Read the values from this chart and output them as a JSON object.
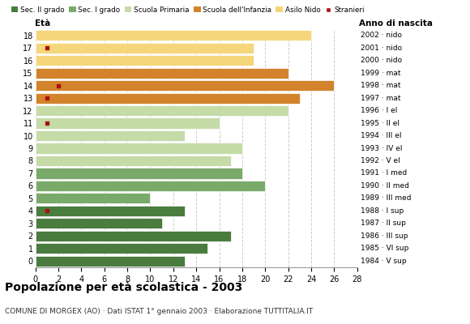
{
  "title": "Popolazione per età scolastica - 2003",
  "subtitle": "COMUNE DI MORGEX (AO) · Dati ISTAT 1° gennaio 2003 · Elaborazione TUTTITALIA.IT",
  "ages": [
    18,
    17,
    16,
    15,
    14,
    13,
    12,
    11,
    10,
    9,
    8,
    7,
    6,
    5,
    4,
    3,
    2,
    1,
    0
  ],
  "years": [
    "1984 · V sup",
    "1985 · VI sup",
    "1986 · III sup",
    "1987 · II sup",
    "1988 · I sup",
    "1989 · III med",
    "1990 · II med",
    "1991 · I med",
    "1992 · V el",
    "1993 · IV el",
    "1994 · III el",
    "1995 · II el",
    "1996 · I el",
    "1997 · mat",
    "1998 · mat",
    "1999 · mat",
    "2000 · nido",
    "2001 · nido",
    "2002 · nido"
  ],
  "values": [
    13,
    15,
    17,
    11,
    13,
    10,
    20,
    18,
    17,
    18,
    13,
    16,
    22,
    23,
    26,
    22,
    19,
    19,
    24
  ],
  "stranieri": [
    0,
    0,
    0,
    0,
    1,
    0,
    0,
    0,
    0,
    0,
    0,
    1,
    0,
    1,
    2,
    0,
    0,
    1,
    0
  ],
  "bar_colors": [
    "#4a7c3f",
    "#4a7c3f",
    "#4a7c3f",
    "#4a7c3f",
    "#4a7c3f",
    "#7aaa6a",
    "#7aaa6a",
    "#7aaa6a",
    "#c5dba8",
    "#c5dba8",
    "#c5dba8",
    "#c5dba8",
    "#c5dba8",
    "#d2832b",
    "#d2832b",
    "#d2832b",
    "#f5d67a",
    "#f5d67a",
    "#f5d67a"
  ],
  "legend_labels": [
    "Sec. II grado",
    "Sec. I grado",
    "Scuola Primaria",
    "Scuola dell'Infanzia",
    "Asilo Nido",
    "Stranieri"
  ],
  "legend_colors": [
    "#4a7c3f",
    "#7aaa6a",
    "#c5dba8",
    "#d2832b",
    "#f5d67a",
    "#aa1111"
  ],
  "stranieri_color": "#aa1111",
  "xlim": [
    0,
    28
  ],
  "xticks": [
    0,
    2,
    4,
    6,
    8,
    10,
    12,
    14,
    16,
    18,
    20,
    22,
    24,
    26,
    28
  ],
  "background_color": "#ffffff",
  "grid_color": "#cccccc"
}
